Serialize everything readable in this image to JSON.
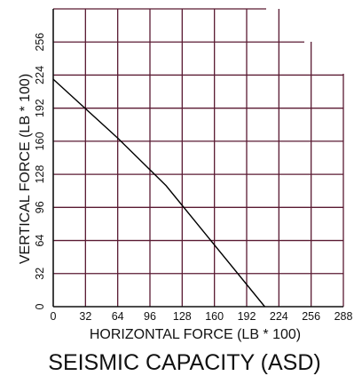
{
  "chart_data": {
    "type": "line",
    "title": "SEISMIC CAPACITY (ASD)",
    "xlabel": "HORIZONTAL FORCE (LB * 100)",
    "ylabel": "VERTICAL FORCE (LB * 100)",
    "xlim": [
      0,
      288
    ],
    "ylim": [
      0,
      288
    ],
    "x_ticks": [
      "0",
      "32",
      "64",
      "96",
      "128",
      "160",
      "192",
      "224",
      "256",
      "288"
    ],
    "y_ticks": [
      "0",
      "32",
      "64",
      "96",
      "128",
      "160",
      "192",
      "224",
      "256"
    ],
    "grid": true,
    "colors": {
      "grid": "#5a1a32",
      "line": "#000000",
      "text": "#111111"
    },
    "series": [
      {
        "x": [
          0,
          64,
          112,
          210
        ],
        "y": [
          220,
          163,
          117,
          0
        ]
      }
    ]
  }
}
